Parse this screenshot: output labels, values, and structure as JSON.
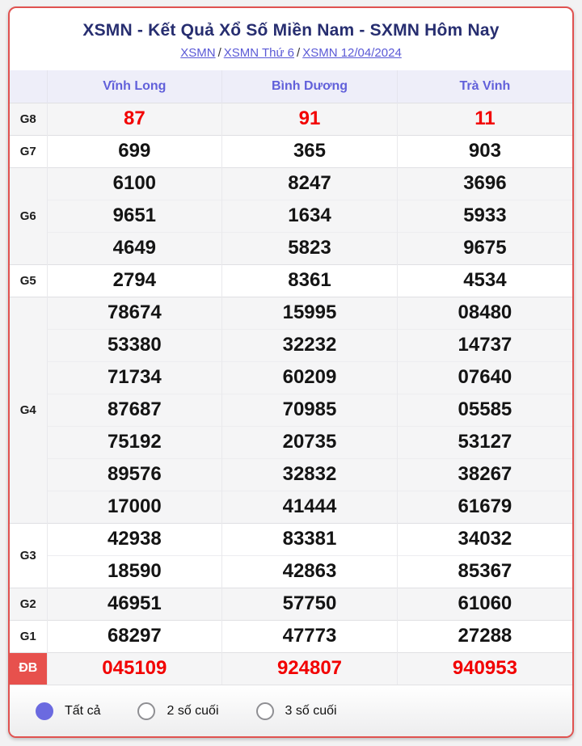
{
  "header": {
    "title": "XSMN - Kết Quả Xổ Số Miền Nam - SXMN Hôm Nay",
    "sep": "/",
    "breadcrumb": [
      {
        "label": "XSMN"
      },
      {
        "label": "XSMN Thứ 6"
      },
      {
        "label": "XSMN 12/04/2024"
      }
    ]
  },
  "table": {
    "columns": [
      "Vĩnh Long",
      "Bình Dương",
      "Trà Vinh"
    ],
    "rows": [
      {
        "key": "g8",
        "label": "G8",
        "shade": true,
        "style": "red",
        "cells": [
          [
            "87",
            "91",
            "11"
          ]
        ]
      },
      {
        "key": "g7",
        "label": "G7",
        "shade": false,
        "style": "black",
        "cells": [
          [
            "699",
            "365",
            "903"
          ]
        ]
      },
      {
        "key": "g6",
        "label": "G6",
        "shade": true,
        "style": "black",
        "cells": [
          [
            "6100",
            "8247",
            "3696"
          ],
          [
            "9651",
            "1634",
            "5933"
          ],
          [
            "4649",
            "5823",
            "9675"
          ]
        ]
      },
      {
        "key": "g5",
        "label": "G5",
        "shade": false,
        "style": "black",
        "cells": [
          [
            "2794",
            "8361",
            "4534"
          ]
        ]
      },
      {
        "key": "g4",
        "label": "G4",
        "shade": true,
        "style": "black",
        "cells": [
          [
            "78674",
            "15995",
            "08480"
          ],
          [
            "53380",
            "32232",
            "14737"
          ],
          [
            "71734",
            "60209",
            "07640"
          ],
          [
            "87687",
            "70985",
            "05585"
          ],
          [
            "75192",
            "20735",
            "53127"
          ],
          [
            "89576",
            "32832",
            "38267"
          ],
          [
            "17000",
            "41444",
            "61679"
          ]
        ]
      },
      {
        "key": "g3",
        "label": "G3",
        "shade": false,
        "style": "black",
        "cells": [
          [
            "42938",
            "83381",
            "34032"
          ],
          [
            "18590",
            "42863",
            "85367"
          ]
        ]
      },
      {
        "key": "g2",
        "label": "G2",
        "shade": true,
        "style": "black",
        "cells": [
          [
            "46951",
            "57750",
            "61060"
          ]
        ]
      },
      {
        "key": "g1",
        "label": "G1",
        "shade": false,
        "style": "black",
        "cells": [
          [
            "68297",
            "47773",
            "27288"
          ]
        ]
      },
      {
        "key": "db",
        "label": "ĐB",
        "shade": true,
        "style": "red",
        "labelStyle": "db",
        "cells": [
          [
            "045109",
            "924807",
            "940953"
          ]
        ]
      }
    ]
  },
  "footer": {
    "options": [
      {
        "label": "Tất cả",
        "selected": true
      },
      {
        "label": "2 số cuối",
        "selected": false
      },
      {
        "label": "3 số cuối",
        "selected": false
      }
    ]
  },
  "colors": {
    "card_border": "#e05250",
    "title_text": "#272e70",
    "link_text": "#5a59d6",
    "header_bg": "#eeeef9",
    "header_text": "#6160da",
    "shade_bg": "#f5f5f6",
    "value_red": "#f20000",
    "db_label_bg": "#e7514d",
    "radio_selected": "#6b6ae0"
  }
}
